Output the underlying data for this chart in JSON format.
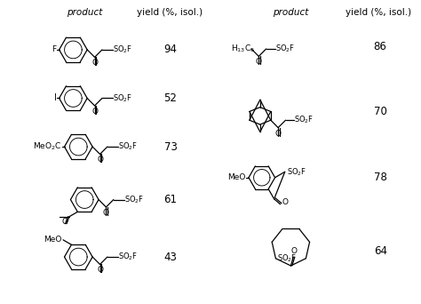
{
  "background_color": "#ffffff",
  "header_left": "product",
  "header_yield_left": "yield (%, isol.)",
  "header_right": "product",
  "header_yield_right": "yield (%, isol.)",
  "left_yields": [
    "94",
    "52",
    "73",
    "61",
    "43"
  ],
  "right_yields": [
    "86",
    "70",
    "78",
    "64"
  ],
  "fig_width": 4.74,
  "fig_height": 3.42,
  "dpi": 100
}
